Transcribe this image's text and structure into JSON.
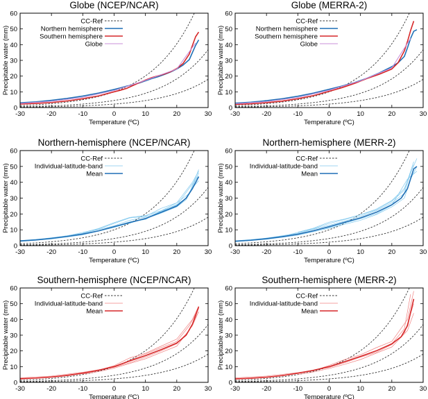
{
  "chart_data": [
    {
      "type": "line",
      "title": "Globe (NCEP/NCAR)",
      "xlabel": "Temperature (ºC)",
      "ylabel": "Precipitable water (mm)",
      "xlim": [
        -30,
        30
      ],
      "ylim": [
        0,
        60
      ],
      "xticks": [
        -30,
        -20,
        -10,
        0,
        10,
        20,
        30
      ],
      "yticks": [
        0,
        10,
        20,
        30,
        40,
        50,
        60
      ],
      "legend": "top-left",
      "series": [
        {
          "name": "CC-Ref",
          "style": "dashed",
          "color": "#333333",
          "kind": "ref"
        },
        {
          "name": "Northern hemisphere",
          "color": "#1f6fb5",
          "width": 1.6,
          "x": [
            -30,
            -25,
            -20,
            -15,
            -10,
            -5,
            0,
            2,
            4,
            6,
            8,
            10,
            12,
            14,
            16,
            18,
            20,
            22,
            24,
            26,
            27
          ],
          "y": [
            3,
            3.6,
            4.6,
            5.8,
            7.3,
            9.2,
            11.5,
            12.5,
            13.6,
            14.5,
            15.6,
            17,
            18.4,
            19.6,
            21,
            22.6,
            24.5,
            27,
            30.5,
            39.5,
            43
          ]
        },
        {
          "name": "Southern hemisphere",
          "color": "#d62728",
          "width": 1.6,
          "x": [
            -30,
            -25,
            -20,
            -15,
            -10,
            -5,
            0,
            2,
            4,
            6,
            8,
            10,
            12,
            14,
            16,
            18,
            20,
            22,
            24,
            26,
            27
          ],
          "y": [
            2.2,
            2.6,
            3.2,
            4.2,
            5.6,
            7.4,
            10,
            11,
            12.2,
            14,
            15.8,
            17.5,
            19,
            20.2,
            21.3,
            22.8,
            24.8,
            28,
            34,
            45,
            48
          ]
        },
        {
          "name": "Globe",
          "color": "#c98fd8",
          "width": 1.1,
          "x": [
            -30,
            -20,
            -10,
            0,
            10,
            20,
            26
          ],
          "y": [
            2.6,
            4,
            6.5,
            10.8,
            17.3,
            24.5,
            41
          ]
        }
      ]
    },
    {
      "type": "line",
      "title": "Globe (MERRA-2)",
      "xlabel": "Temperature (ºC)",
      "ylabel": "Precipitable water (mm)",
      "xlim": [
        -30,
        30
      ],
      "ylim": [
        0,
        60
      ],
      "xticks": [
        -30,
        -20,
        -10,
        0,
        10,
        20,
        30
      ],
      "yticks": [
        0,
        10,
        20,
        30,
        40,
        50,
        60
      ],
      "legend": "top-left",
      "series": [
        {
          "name": "CC-Ref",
          "style": "dashed",
          "color": "#333333",
          "kind": "ref"
        },
        {
          "name": "Northern hemisphere",
          "color": "#1f6fb5",
          "width": 1.6,
          "x": [
            -30,
            -25,
            -20,
            -15,
            -10,
            -5,
            0,
            4,
            8,
            12,
            16,
            20,
            22,
            24,
            25,
            26,
            27,
            28
          ],
          "y": [
            2.8,
            3.4,
            4.4,
            5.6,
            7.2,
            9.2,
            11.6,
            13.6,
            15.8,
            18.6,
            22,
            26,
            28.5,
            32.5,
            38,
            44,
            48.5,
            49.5
          ]
        },
        {
          "name": "Southern hemisphere",
          "color": "#d62728",
          "width": 1.6,
          "x": [
            -30,
            -25,
            -20,
            -15,
            -10,
            -5,
            0,
            4,
            8,
            12,
            16,
            20,
            22,
            24,
            25,
            26,
            27
          ],
          "y": [
            2,
            2.4,
            3.1,
            4.1,
            5.6,
            7.6,
            10.3,
            12.6,
            15.3,
            18.4,
            21.2,
            24.5,
            28.5,
            36,
            42,
            49,
            55
          ]
        },
        {
          "name": "Globe",
          "color": "#c98fd8",
          "width": 1.1,
          "x": [
            -30,
            -20,
            -10,
            0,
            10,
            20,
            26
          ],
          "y": [
            2.4,
            3.8,
            6.4,
            11,
            17,
            25.2,
            44
          ]
        }
      ]
    },
    {
      "type": "line",
      "title": "Northern-hemisphere (NCEP/NCAR)",
      "xlabel": "Temperature (ºC)",
      "ylabel": "Precipitable water (mm)",
      "xlim": [
        -30,
        30
      ],
      "ylim": [
        0,
        60
      ],
      "xticks": [
        -30,
        -20,
        -10,
        0,
        10,
        20,
        30
      ],
      "yticks": [
        0,
        10,
        20,
        30,
        40,
        50,
        60
      ],
      "legend": "top-left",
      "series": [
        {
          "name": "CC-Ref",
          "style": "dashed",
          "color": "#333333",
          "kind": "ref"
        },
        {
          "name": "Individual-latitude-band",
          "color": "#7fc8ee",
          "width": 0.7,
          "x": [
            -30,
            -20,
            -10,
            0,
            5,
            10,
            15,
            20,
            23,
            25,
            27
          ],
          "y": [
            3.2,
            4.8,
            7.8,
            12.5,
            16,
            18,
            21.5,
            26,
            30,
            37,
            46
          ]
        },
        {
          "color": "#7fc8ee",
          "width": 0.7,
          "x": [
            -30,
            -20,
            -10,
            0,
            5,
            10,
            15,
            20,
            23,
            25,
            27
          ],
          "y": [
            2.6,
            4.2,
            6.8,
            11.5,
            14.2,
            17,
            20.5,
            24.5,
            29,
            36.5,
            41
          ]
        },
        {
          "color": "#7fc8ee",
          "width": 0.7,
          "x": [
            -25,
            -15,
            -5,
            0,
            5,
            10,
            15,
            20,
            24,
            27
          ],
          "y": [
            3.8,
            6.2,
            10.5,
            14,
            17.5,
            18.5,
            23.5,
            27,
            33,
            48
          ]
        },
        {
          "color": "#7fc8ee",
          "width": 0.7,
          "x": [
            -20,
            -10,
            -5,
            0,
            5,
            10,
            15,
            20,
            25,
            27
          ],
          "y": [
            4.4,
            7.2,
            9.2,
            12,
            15,
            16.5,
            22,
            25.5,
            39,
            44
          ]
        },
        {
          "color": "#7fc8ee",
          "width": 0.7,
          "x": [
            -10,
            -5,
            0,
            5,
            10,
            15,
            20,
            25,
            27
          ],
          "y": [
            8.2,
            10.8,
            14.5,
            17.8,
            19,
            22,
            27,
            40,
            47
          ]
        },
        {
          "name": "Mean",
          "color": "#1f6fb5",
          "width": 1.6,
          "x": [
            -30,
            -25,
            -20,
            -15,
            -10,
            -5,
            0,
            5,
            10,
            15,
            20,
            23,
            25,
            27
          ],
          "y": [
            3,
            3.6,
            4.6,
            5.8,
            7.3,
            9.3,
            12,
            14.6,
            17.1,
            21,
            25,
            30,
            36,
            43.5
          ]
        }
      ]
    },
    {
      "type": "line",
      "title": "Northern-hemisphere (MERR-2)",
      "xlabel": "Temperature (ºC)",
      "ylabel": "Precipitable water (mm)",
      "xlim": [
        -30,
        30
      ],
      "ylim": [
        0,
        60
      ],
      "xticks": [
        -30,
        -20,
        -10,
        0,
        10,
        20,
        30
      ],
      "yticks": [
        0,
        10,
        20,
        30,
        40,
        50,
        60
      ],
      "legend": "top-left",
      "series": [
        {
          "name": "CC-Ref",
          "style": "dashed",
          "color": "#333333",
          "kind": "ref"
        },
        {
          "name": "Individual-latitude-band",
          "color": "#7fc8ee",
          "width": 0.7,
          "x": [
            -30,
            -20,
            -10,
            0,
            5,
            10,
            15,
            20,
            24,
            26,
            28
          ],
          "y": [
            3,
            4.7,
            7.8,
            12.8,
            15.5,
            18.5,
            22,
            27,
            33,
            46,
            55
          ]
        },
        {
          "color": "#7fc8ee",
          "width": 0.7,
          "x": [
            -30,
            -20,
            -10,
            0,
            5,
            10,
            15,
            20,
            24,
            26,
            28
          ],
          "y": [
            2.5,
            4,
            6.6,
            11,
            13.5,
            16,
            19.5,
            24.5,
            30,
            42,
            50
          ]
        },
        {
          "color": "#7fc8ee",
          "width": 0.7,
          "x": [
            -25,
            -15,
            -5,
            0,
            5,
            10,
            15,
            20,
            24,
            27
          ],
          "y": [
            3.6,
            6,
            10.6,
            14,
            16.5,
            19.5,
            22.5,
            28,
            35,
            53
          ]
        },
        {
          "color": "#7fc8ee",
          "width": 0.7,
          "x": [
            -20,
            -10,
            0,
            5,
            10,
            15,
            20,
            25,
            28
          ],
          "y": [
            4.2,
            7.4,
            11.5,
            14.2,
            17,
            20,
            25.5,
            42,
            47
          ]
        },
        {
          "color": "#7fc8ee",
          "width": 0.7,
          "x": [
            -10,
            -5,
            0,
            5,
            10,
            15,
            20,
            24,
            27
          ],
          "y": [
            8.5,
            11,
            14.8,
            16.8,
            19.5,
            23,
            28.5,
            36,
            51
          ]
        },
        {
          "name": "Mean",
          "color": "#1f6fb5",
          "width": 1.6,
          "x": [
            -30,
            -25,
            -20,
            -15,
            -10,
            -5,
            0,
            5,
            10,
            15,
            20,
            23,
            25,
            27,
            28
          ],
          "y": [
            2.8,
            3.4,
            4.4,
            5.6,
            7.2,
            9.4,
            12,
            14.8,
            17.5,
            21,
            25.8,
            30,
            36,
            48.5,
            50
          ]
        }
      ]
    },
    {
      "type": "line",
      "title": "Southern-hemisphere (NCEP/NCAR)",
      "xlabel": "Temperature (ºC)",
      "ylabel": "Precipitable water (mm)",
      "xlim": [
        -30,
        30
      ],
      "ylim": [
        0,
        60
      ],
      "xticks": [
        -30,
        -20,
        -10,
        0,
        10,
        20,
        30
      ],
      "yticks": [
        0,
        10,
        20,
        30,
        40,
        50,
        60
      ],
      "legend": "top-left",
      "series": [
        {
          "name": "CC-Ref",
          "style": "dashed",
          "color": "#333333",
          "kind": "ref"
        },
        {
          "name": "Individual-latitude-band",
          "color": "#f08080",
          "width": 0.7,
          "x": [
            -30,
            -20,
            -10,
            0,
            5,
            10,
            15,
            20,
            24,
            27
          ],
          "y": [
            2,
            3.4,
            6,
            10,
            14,
            18,
            22,
            26,
            36,
            47
          ]
        },
        {
          "color": "#f08080",
          "width": 0.7,
          "x": [
            -30,
            -20,
            -10,
            0,
            5,
            10,
            15,
            20,
            24,
            27
          ],
          "y": [
            2.8,
            4,
            6.4,
            9.6,
            12.5,
            16,
            20,
            24.5,
            33,
            45
          ]
        },
        {
          "color": "#f08080",
          "width": 0.7,
          "x": [
            -25,
            -15,
            -5,
            0,
            5,
            10,
            15,
            20,
            25,
            27
          ],
          "y": [
            2.6,
            4.4,
            7.8,
            10.6,
            15.5,
            18.5,
            23,
            27.5,
            40,
            48.5
          ]
        },
        {
          "color": "#f08080",
          "width": 0.7,
          "x": [
            -10,
            -5,
            0,
            5,
            10,
            15,
            20,
            25,
            27
          ],
          "y": [
            5.2,
            6.8,
            9,
            12,
            15,
            19,
            23,
            36,
            45
          ]
        },
        {
          "name": "Mean",
          "color": "#d62728",
          "width": 1.6,
          "x": [
            -30,
            -25,
            -20,
            -15,
            -10,
            -5,
            0,
            5,
            10,
            15,
            20,
            23,
            25,
            27
          ],
          "y": [
            2.3,
            2.7,
            3.4,
            4.4,
            5.8,
            7.6,
            10,
            13.6,
            17,
            20.8,
            25,
            30,
            37,
            48
          ]
        }
      ]
    },
    {
      "type": "line",
      "title": "Southern-hemisphere (MERR-2)",
      "xlabel": "Temperature (ºC)",
      "ylabel": "Precipitable water (mm)",
      "xlim": [
        -30,
        30
      ],
      "ylim": [
        0,
        60
      ],
      "xticks": [
        -30,
        -20,
        -10,
        0,
        10,
        20,
        30
      ],
      "yticks": [
        0,
        10,
        20,
        30,
        40,
        50,
        60
      ],
      "legend": "top-left",
      "series": [
        {
          "name": "CC-Ref",
          "style": "dashed",
          "color": "#333333",
          "kind": "ref"
        },
        {
          "name": "Individual-latitude-band",
          "color": "#f08080",
          "width": 0.7,
          "x": [
            -30,
            -20,
            -10,
            0,
            5,
            10,
            15,
            20,
            24,
            26
          ],
          "y": [
            2,
            3.2,
            5.8,
            10,
            13,
            16.5,
            20,
            24.5,
            34,
            56
          ]
        },
        {
          "color": "#f08080",
          "width": 0.7,
          "x": [
            -30,
            -20,
            -10,
            0,
            5,
            10,
            15,
            20,
            24,
            27
          ],
          "y": [
            2.8,
            4,
            6.2,
            9.4,
            12.5,
            16,
            19,
            24,
            31,
            50
          ]
        },
        {
          "color": "#f08080",
          "width": 0.7,
          "x": [
            -25,
            -15,
            -5,
            0,
            5,
            10,
            15,
            20,
            25,
            27
          ],
          "y": [
            2.4,
            4.2,
            7.4,
            10.8,
            14.5,
            17.5,
            22,
            26,
            40,
            58
          ]
        },
        {
          "color": "#f08080",
          "width": 0.7,
          "x": [
            -10,
            -5,
            0,
            5,
            10,
            15,
            20,
            25,
            27
          ],
          "y": [
            5,
            6.6,
            8.8,
            11.5,
            14.5,
            18.5,
            22.5,
            33,
            44
          ]
        },
        {
          "name": "Mean",
          "color": "#d62728",
          "width": 1.6,
          "x": [
            -30,
            -25,
            -20,
            -15,
            -10,
            -5,
            0,
            5,
            10,
            15,
            20,
            23,
            25,
            27
          ],
          "y": [
            2.2,
            2.6,
            3.3,
            4.3,
            5.8,
            7.6,
            10,
            13.2,
            16.5,
            20,
            24.5,
            29,
            36,
            53
          ]
        }
      ]
    }
  ]
}
